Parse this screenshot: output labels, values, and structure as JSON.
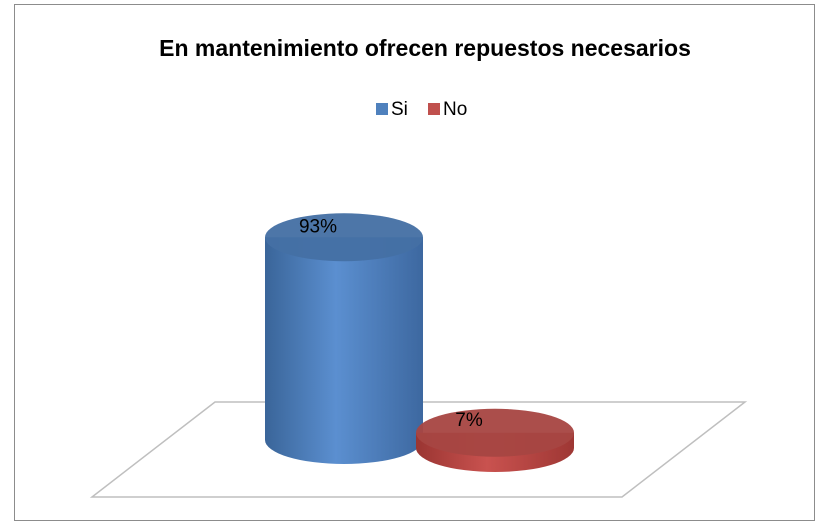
{
  "chart_data": {
    "type": "bar3d",
    "title": "En mantenimiento ofrecen repuestos necesarios",
    "series": [
      {
        "name": "Si",
        "color": "#4f81bd",
        "values": [
          93
        ],
        "value_labels": [
          "93%"
        ]
      },
      {
        "name": "No",
        "color": "#c0504d",
        "values": [
          7
        ],
        "value_labels": [
          "7%"
        ]
      }
    ]
  }
}
